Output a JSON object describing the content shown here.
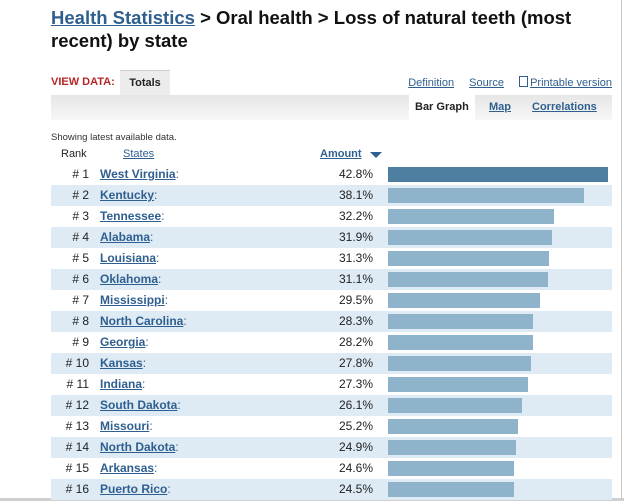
{
  "breadcrumb": {
    "root": "Health Statistics",
    "separator1": " > ",
    "middle": "Oral health",
    "separator2": " > ",
    "current": "Loss of natural teeth (most recent) by state"
  },
  "view_data": {
    "label": "VIEW DATA:",
    "tab_totals": "Totals"
  },
  "top_links": {
    "definition": "Definition",
    "source": "Source",
    "printable": "Printable version"
  },
  "subtabs": {
    "bar_graph": "Bar Graph",
    "map": "Map",
    "correlations": "Correlations"
  },
  "showing_text": "Showing latest available data.",
  "columns": {
    "rank": "Rank",
    "states": "States",
    "amount": "Amount"
  },
  "colors": {
    "link": "#2f5f8f",
    "bar_top": "#4e7fa1",
    "bar": "#8fb3cb",
    "row_alt": "#deebf5",
    "view_label": "#b52626"
  },
  "rows": [
    {
      "rank": "# 1",
      "state": "West Virginia",
      "amount": "42.8%",
      "value": 42.8
    },
    {
      "rank": "# 2",
      "state": "Kentucky",
      "amount": "38.1%",
      "value": 38.1
    },
    {
      "rank": "# 3",
      "state": "Tennessee",
      "amount": "32.2%",
      "value": 32.2
    },
    {
      "rank": "# 4",
      "state": "Alabama",
      "amount": "31.9%",
      "value": 31.9
    },
    {
      "rank": "# 5",
      "state": "Louisiana",
      "amount": "31.3%",
      "value": 31.3
    },
    {
      "rank": "# 6",
      "state": "Oklahoma",
      "amount": "31.1%",
      "value": 31.1
    },
    {
      "rank": "# 7",
      "state": "Mississippi",
      "amount": "29.5%",
      "value": 29.5
    },
    {
      "rank": "# 8",
      "state": "North Carolina",
      "amount": "28.3%",
      "value": 28.3
    },
    {
      "rank": "# 9",
      "state": "Georgia",
      "amount": "28.2%",
      "value": 28.2
    },
    {
      "rank": "# 10",
      "state": "Kansas",
      "amount": "27.8%",
      "value": 27.8
    },
    {
      "rank": "# 11",
      "state": "Indiana",
      "amount": "27.3%",
      "value": 27.3
    },
    {
      "rank": "# 12",
      "state": "South Dakota",
      "amount": "26.1%",
      "value": 26.1
    },
    {
      "rank": "# 13",
      "state": "Missouri",
      "amount": "25.2%",
      "value": 25.2
    },
    {
      "rank": "# 14",
      "state": "North Dakota",
      "amount": "24.9%",
      "value": 24.9
    },
    {
      "rank": "# 15",
      "state": "Arkansas",
      "amount": "24.6%",
      "value": 24.6
    },
    {
      "rank": "# 16",
      "state": "Puerto Rico",
      "amount": "24.5%",
      "value": 24.5
    }
  ]
}
